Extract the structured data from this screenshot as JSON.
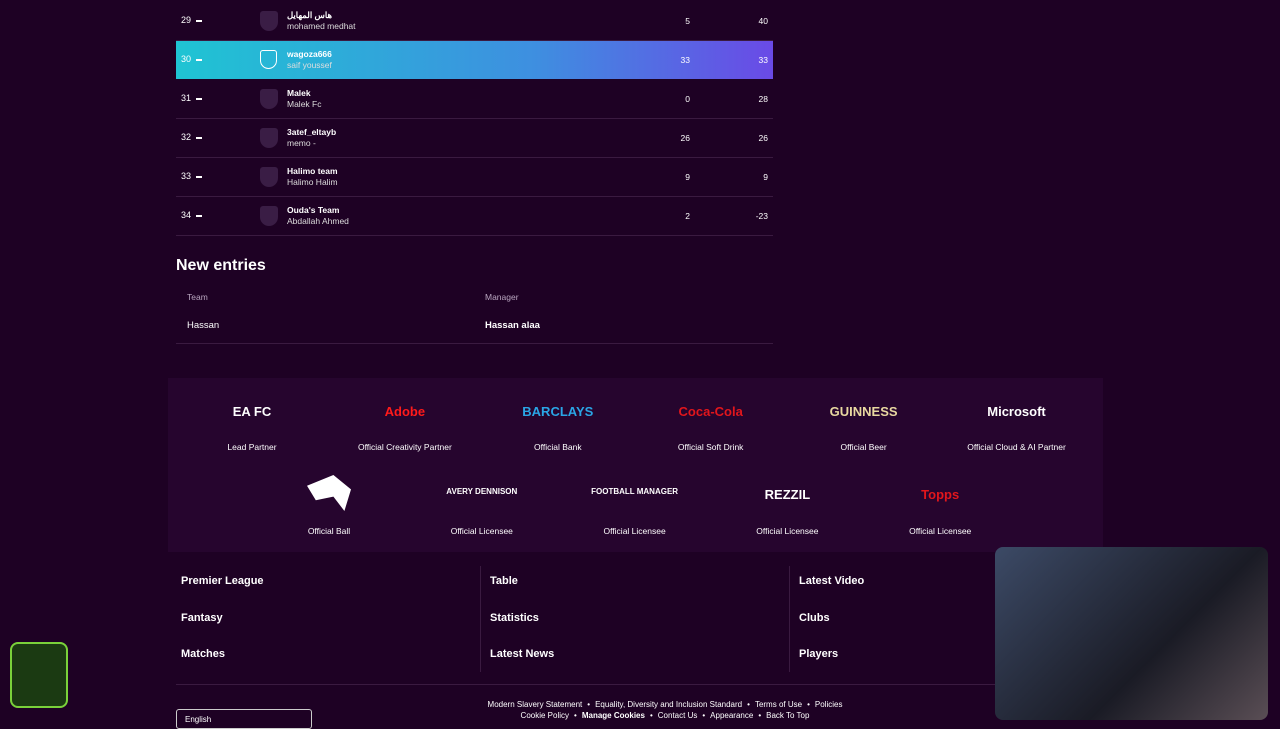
{
  "table": {
    "rows": [
      {
        "rank": 29,
        "team": "هاس المهايل",
        "manager": "mohamed medhat",
        "gw": 5,
        "total": 40
      },
      {
        "rank": 30,
        "team": "wagoza666",
        "manager": "saif youssef",
        "gw": 33,
        "total": 33
      },
      {
        "rank": 31,
        "team": "Malek",
        "manager": "Malek Fc",
        "gw": 0,
        "total": 28
      },
      {
        "rank": 32,
        "team": "3atef_eltayb",
        "manager": "memo -",
        "gw": 26,
        "total": 26
      },
      {
        "rank": 33,
        "team": "Halimo team",
        "manager": "Halimo Halim",
        "gw": 9,
        "total": 9
      },
      {
        "rank": 34,
        "team": "Ouda's Team",
        "manager": "Abdallah Ahmed",
        "gw": 2,
        "total": -23
      }
    ]
  },
  "new_entries": {
    "title": "New entries",
    "headers": [
      "Team",
      "Manager"
    ],
    "rows": [
      [
        "Hassan",
        "Hassan alaa"
      ]
    ]
  },
  "partners": [
    {
      "logo": "EA FC",
      "label": "Lead Partner"
    },
    {
      "logo": "Adobe",
      "label": "Official Creativity Partner"
    },
    {
      "logo": "BARCLAYS",
      "label": "Official Bank"
    },
    {
      "logo": "Coca-Cola",
      "label": "Official Soft Drink"
    },
    {
      "logo": "GUINNESS",
      "label": "Official Beer"
    },
    {
      "logo": "Microsoft",
      "label": "Official Cloud & AI Partner"
    },
    {
      "label": "Official Ball"
    },
    {
      "logo": "AVERY DENNISON",
      "label": "Official Licensee"
    },
    {
      "logo": "FOOTBALL MANAGER",
      "label": "Official Licensee"
    },
    {
      "logo": "REZZIL",
      "label": "Official Licensee"
    },
    {
      "logo": "Topps",
      "label": "Official Licensee"
    }
  ],
  "footer": {
    "columns": [
      [
        "Premier League",
        "Fantasy",
        "Matches"
      ],
      [
        "Table",
        "Statistics",
        "Latest News"
      ],
      [
        "Latest Video",
        "Clubs",
        "Players"
      ]
    ]
  },
  "legal": {
    "lines": [
      [
        "Modern Slavery Statement",
        "Equality, Diversity and Inclusion Standard",
        "Terms of Use",
        "Policies"
      ],
      [
        "Cookie Policy",
        "Manage Cookies",
        "Contact Us",
        "Appearance",
        "Back To Top"
      ]
    ]
  },
  "language": "English"
}
